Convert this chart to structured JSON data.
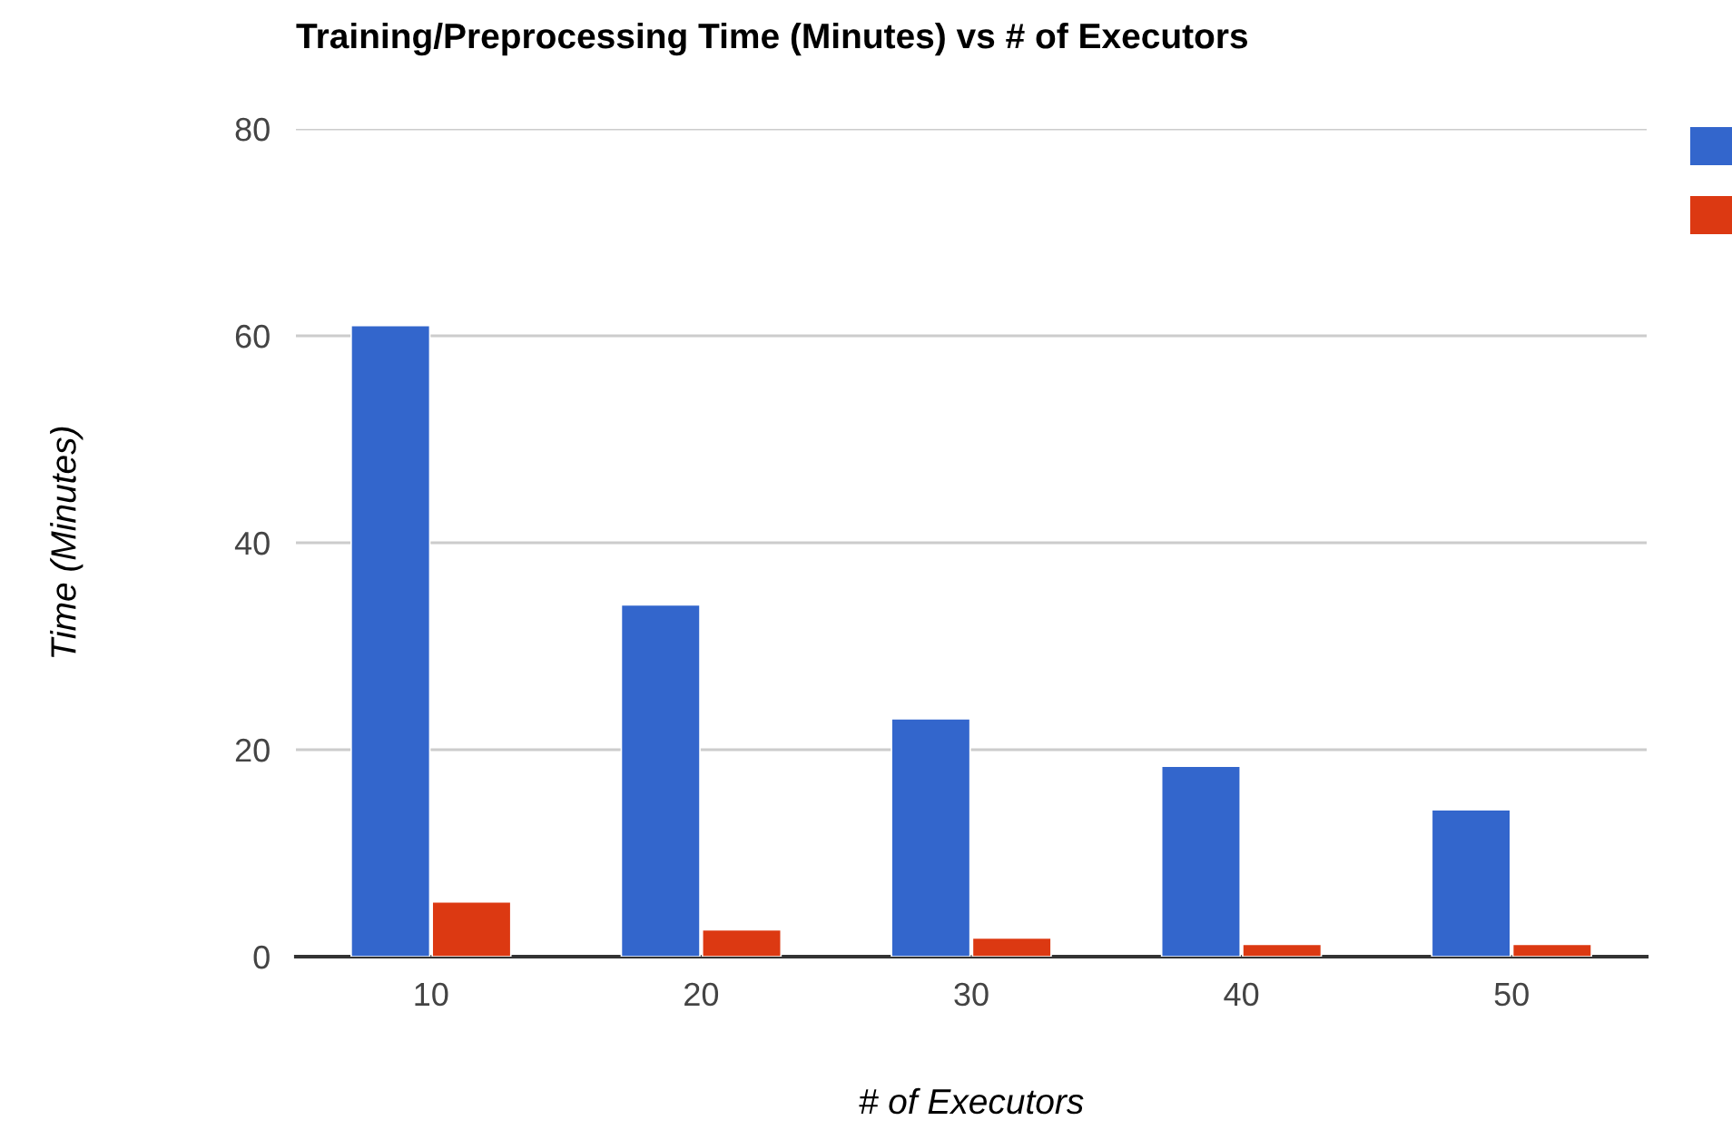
{
  "chart_data": {
    "type": "bar",
    "title": "Training/Preprocessing Time (Minutes) vs # of Executors",
    "xlabel": "# of Executors",
    "ylabel": "Time (Minutes)",
    "categories": [
      "10",
      "20",
      "30",
      "40",
      "50"
    ],
    "series": [
      {
        "color": "#3366cc",
        "values": [
          61,
          34,
          23,
          18.4,
          14.2
        ]
      },
      {
        "color": "#dc3912",
        "values": [
          5.3,
          2.6,
          1.8,
          1.2,
          1.2
        ]
      }
    ],
    "ylim": [
      0,
      80
    ],
    "yticks": [
      0,
      20,
      40,
      60,
      80
    ],
    "grid": "y"
  }
}
